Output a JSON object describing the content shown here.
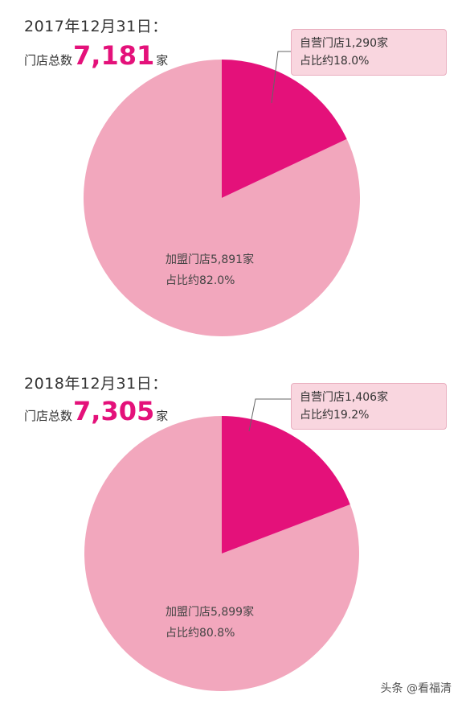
{
  "chart_data": [
    {
      "type": "pie",
      "title": "2017年12月31日：",
      "total": {
        "label": "门店总数",
        "value": "7,181",
        "unit": "家"
      },
      "slices": [
        {
          "name": "自营门店",
          "count": "1,290",
          "unit": "家",
          "share_label": "占比约18.0%",
          "value": 18.0,
          "color": "#e4117a"
        },
        {
          "name": "加盟门店",
          "count": "5,891",
          "unit": "家",
          "share_label": "占比约82.0%",
          "value": 82.0,
          "color": "#f2a7bd"
        }
      ]
    },
    {
      "type": "pie",
      "title": "2018年12月31日：",
      "total": {
        "label": "门店总数",
        "value": "7,305",
        "unit": "家"
      },
      "slices": [
        {
          "name": "自营门店",
          "count": "1,406",
          "unit": "家",
          "share_label": "占比约19.2%",
          "value": 19.2,
          "color": "#e4117a"
        },
        {
          "name": "加盟门店",
          "count": "5,899",
          "unit": "家",
          "share_label": "占比约80.8%",
          "value": 80.8,
          "color": "#f2a7bd"
        }
      ]
    }
  ],
  "watermark": "头条 @看福清",
  "colors": {
    "accent": "#e4117a",
    "pie_light": "#f2a7bd",
    "callout_bg": "#f9d6df",
    "callout_border": "#e9aebf"
  }
}
